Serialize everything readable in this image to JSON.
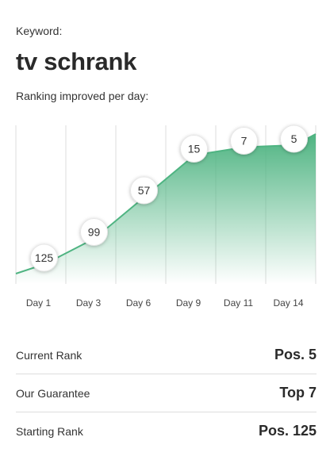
{
  "keyword": {
    "label": "Keyword:",
    "value": "tv schrank"
  },
  "subtitle": "Ranking improved per day:",
  "colors": {
    "accent": "#4fb482",
    "grid": "#dddddd"
  },
  "chart_data": {
    "type": "area",
    "x": [
      "Day 1",
      "Day 3",
      "Day 6",
      "Day 9",
      "Day 11",
      "Day 14"
    ],
    "series": [
      {
        "values": [
          125,
          99,
          57,
          15,
          7,
          5
        ]
      }
    ]
  },
  "stats": [
    {
      "label": "Current Rank",
      "value": "Pos. 5"
    },
    {
      "label": "Our Guarantee",
      "value": "Top 7"
    },
    {
      "label": "Starting Rank",
      "value": "Pos. 125"
    }
  ]
}
